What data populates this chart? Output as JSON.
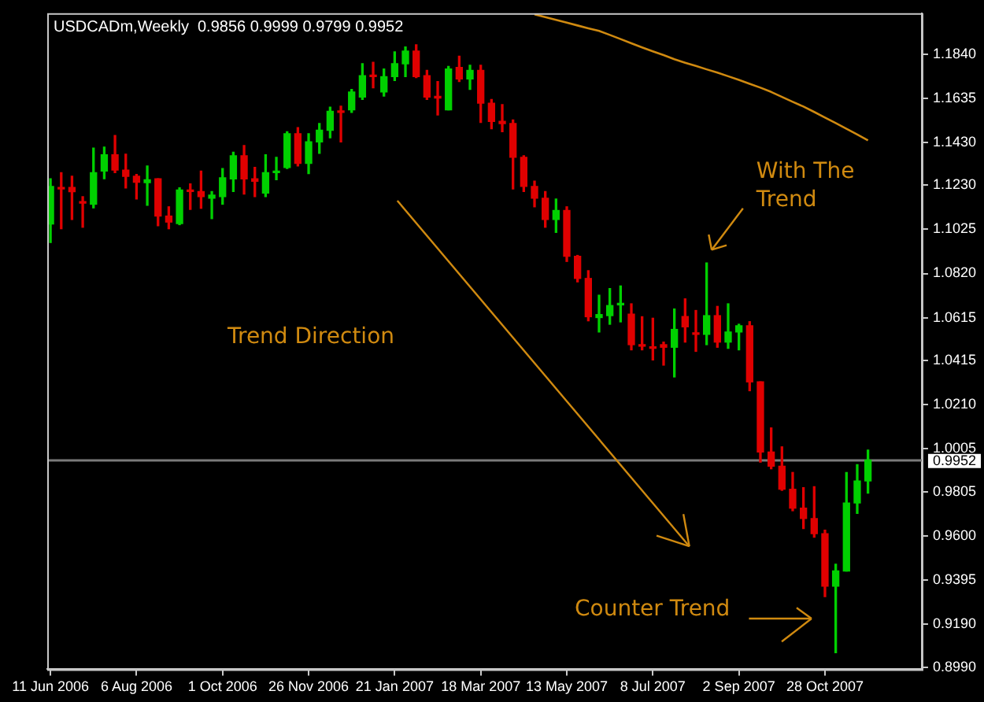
{
  "chart_data": {
    "type": "candlestick",
    "title": "USDCADm,Weekly  0.9856 0.9999 0.9799 0.9952",
    "categories": [
      "11 Jun 2006",
      null,
      null,
      null,
      null,
      null,
      null,
      null,
      "6 Aug 2006",
      null,
      null,
      null,
      null,
      null,
      null,
      null,
      "1 Oct 2006",
      null,
      null,
      null,
      null,
      null,
      null,
      null,
      "26 Nov 2006",
      null,
      null,
      null,
      null,
      null,
      null,
      null,
      "21 Jan 2007",
      null,
      null,
      null,
      null,
      null,
      null,
      null,
      "18 Mar 2007",
      null,
      null,
      null,
      null,
      null,
      null,
      null,
      "13 May 2007",
      null,
      null,
      null,
      null,
      null,
      null,
      null,
      "8 Jul 2007",
      null,
      null,
      null,
      null,
      null,
      null,
      null,
      "2 Sep 2007",
      null,
      null,
      null,
      null,
      null,
      null,
      null,
      "28 Oct 2007",
      null,
      null,
      null,
      null
    ],
    "ohlc": [
      [
        1.105,
        1.126,
        1.0964,
        1.1225
      ],
      [
        1.1218,
        1.1289,
        1.1028,
        1.1213
      ],
      [
        1.122,
        1.1272,
        1.1071,
        1.12
      ],
      [
        1.1154,
        1.1177,
        1.1035,
        1.1147
      ],
      [
        1.1142,
        1.1403,
        1.1125,
        1.1289
      ],
      [
        1.1296,
        1.1408,
        1.1261,
        1.1372
      ],
      [
        1.1372,
        1.1462,
        1.1289,
        1.1301
      ],
      [
        1.1301,
        1.1375,
        1.1218,
        1.1272
      ],
      [
        1.1272,
        1.128,
        1.1166,
        1.1244
      ],
      [
        1.1242,
        1.132,
        1.1137,
        1.1256
      ],
      [
        1.126,
        1.126,
        1.1042,
        1.1087
      ],
      [
        1.1087,
        1.113,
        1.1028,
        1.1059
      ],
      [
        1.1052,
        1.1218,
        1.1047,
        1.1208
      ],
      [
        1.1208,
        1.1237,
        1.1118,
        1.1201
      ],
      [
        1.1201,
        1.1296,
        1.1123,
        1.1177
      ],
      [
        1.117,
        1.1201,
        1.1075,
        1.1184
      ],
      [
        1.1177,
        1.1308,
        1.1142,
        1.1265
      ],
      [
        1.126,
        1.1384,
        1.1201,
        1.1367
      ],
      [
        1.1367,
        1.1415,
        1.1189,
        1.126
      ],
      [
        1.126,
        1.1313,
        1.1177,
        1.1249
      ],
      [
        1.1194,
        1.1372,
        1.1177,
        1.1289
      ],
      [
        1.1289,
        1.136,
        1.1256,
        1.1296
      ],
      [
        1.1313,
        1.1479,
        1.1308,
        1.147
      ],
      [
        1.147,
        1.1498,
        1.132,
        1.1332
      ],
      [
        1.1332,
        1.147,
        1.1284,
        1.1432
      ],
      [
        1.1432,
        1.1517,
        1.1379,
        1.1486
      ],
      [
        1.1486,
        1.1593,
        1.1451,
        1.1574
      ],
      [
        1.1574,
        1.1598,
        1.1432,
        1.1569
      ],
      [
        1.1581,
        1.1676,
        1.1569,
        1.1664
      ],
      [
        1.164,
        1.1795,
        1.1629,
        1.174
      ],
      [
        1.174,
        1.1802,
        1.1683,
        1.1735
      ],
      [
        1.1664,
        1.1771,
        1.1645,
        1.1735
      ],
      [
        1.1735,
        1.185,
        1.1717,
        1.1795
      ],
      [
        1.1795,
        1.1873,
        1.1735,
        1.1854
      ],
      [
        1.1854,
        1.1883,
        1.1731,
        1.1735
      ],
      [
        1.174,
        1.1764,
        1.1629,
        1.164
      ],
      [
        1.164,
        1.1712,
        1.1557,
        1.1636
      ],
      [
        1.1581,
        1.1783,
        1.1581,
        1.1771
      ],
      [
        1.1778,
        1.183,
        1.1712,
        1.1724
      ],
      [
        1.1724,
        1.1788,
        1.1676,
        1.1764
      ],
      [
        1.1764,
        1.1788,
        1.1522,
        1.1612
      ],
      [
        1.1612,
        1.1629,
        1.1493,
        1.1527
      ],
      [
        1.1527,
        1.1605,
        1.1479,
        1.1517
      ],
      [
        1.1517,
        1.1534,
        1.1213,
        1.136
      ],
      [
        1.136,
        1.1367,
        1.1201,
        1.1225
      ],
      [
        1.1225,
        1.1249,
        1.113,
        1.117
      ],
      [
        1.117,
        1.1201,
        1.1035,
        1.1071
      ],
      [
        1.1071,
        1.1166,
        1.1011,
        1.1113
      ],
      [
        1.1113,
        1.113,
        1.0876,
        1.09
      ],
      [
        1.09,
        1.0904,
        1.0781,
        1.0797
      ],
      [
        1.0797,
        1.0833,
        1.06,
        1.0619
      ],
      [
        1.0615,
        1.0719,
        1.0548,
        1.0629
      ],
      [
        1.0624,
        1.075,
        1.0584,
        1.0671
      ],
      [
        1.0674,
        1.0762,
        1.0595,
        1.0681
      ],
      [
        1.0631,
        1.0679,
        1.0465,
        1.0489
      ],
      [
        1.0489,
        1.0619,
        1.0465,
        1.0482
      ],
      [
        1.0477,
        1.0612,
        1.0418,
        1.0472
      ],
      [
        1.0489,
        1.0501,
        1.0394,
        1.0477
      ],
      [
        1.0477,
        1.0655,
        1.0339,
        1.056
      ],
      [
        1.062,
        1.0702,
        1.0501,
        1.0572
      ],
      [
        1.0541,
        1.0648,
        1.0458,
        1.0537
      ],
      [
        1.0537,
        1.0869,
        1.0489,
        1.0624
      ],
      [
        1.0624,
        1.0667,
        1.0477,
        1.0501
      ],
      [
        1.0501,
        1.0679,
        1.0472,
        1.0548
      ],
      [
        1.0548,
        1.0584,
        1.0465,
        1.0577
      ],
      [
        1.0577,
        1.0596,
        1.0275,
        1.0316
      ],
      [
        1.0316,
        1.0316,
        0.9943,
        0.999
      ],
      [
        0.999,
        1.0102,
        0.9912,
        0.9924
      ],
      [
        0.9924,
        1.0014,
        0.9812,
        0.9817
      ],
      [
        0.9817,
        0.9895,
        0.9717,
        0.9729
      ],
      [
        0.9729,
        0.9824,
        0.9634,
        0.9681
      ],
      [
        0.9681,
        0.9829,
        0.9594,
        0.961
      ],
      [
        0.961,
        0.9627,
        0.9318,
        0.9366
      ],
      [
        0.9366,
        0.9468,
        0.9057,
        0.9437
      ],
      [
        0.9437,
        0.9895,
        0.9437,
        0.9753
      ],
      [
        0.9753,
        0.9931,
        0.9705,
        0.9855
      ],
      [
        0.9856,
        0.9999,
        0.9799,
        0.9952
      ]
    ],
    "colors": [
      "#00d000",
      "#e00000",
      "#e00000",
      "#e00000",
      "#00d000",
      "#00d000",
      "#e00000",
      "#e00000",
      "#e00000",
      "#00d000",
      "#e00000",
      "#e00000",
      "#00d000",
      "#e00000",
      "#e00000",
      "#00d000",
      "#00d000",
      "#00d000",
      "#e00000",
      "#e00000",
      "#00d000",
      "#00d000",
      "#00d000",
      "#e00000",
      "#00d000",
      "#00d000",
      "#00d000",
      "#e00000",
      "#00d000",
      "#00d000",
      "#e00000",
      "#00d000",
      "#00d000",
      "#00d000",
      "#e00000",
      "#e00000",
      "#e00000",
      "#00d000",
      "#e00000",
      "#00d000",
      "#e00000",
      "#e00000",
      "#e00000",
      "#e00000",
      "#e00000",
      "#e00000",
      "#e00000",
      "#00d000",
      "#e00000",
      "#e00000",
      "#e00000",
      "#00d000",
      "#00d000",
      "#00d000",
      "#e00000",
      "#e00000",
      "#e00000",
      "#e00000",
      "#00d000",
      "#e00000",
      "#e00000",
      "#00d000",
      "#e00000",
      "#00d000",
      "#00d000",
      "#e00000",
      "#e00000",
      "#e00000",
      "#e00000",
      "#e00000",
      "#e00000",
      "#e00000",
      "#e00000",
      "#00d000",
      "#00d000",
      "#00d000",
      "#00d000"
    ],
    "series": [
      {
        "type": "line",
        "color": "#d08a10",
        "values": [
          null,
          null,
          null,
          null,
          null,
          null,
          null,
          null,
          null,
          null,
          null,
          null,
          null,
          null,
          null,
          null,
          null,
          null,
          null,
          null,
          null,
          null,
          null,
          null,
          null,
          null,
          null,
          null,
          null,
          null,
          null,
          null,
          null,
          null,
          null,
          null,
          null,
          null,
          null,
          null,
          null,
          null,
          null,
          null,
          null,
          1.2025,
          1.2012,
          1.1999,
          1.1986,
          1.1973,
          1.196,
          1.1948,
          1.1929,
          1.191,
          1.189,
          1.1871,
          1.1853,
          1.1835,
          1.1816,
          1.18,
          1.1785,
          1.1769,
          1.1754,
          1.1737,
          1.172,
          1.1702,
          1.1684,
          1.1664,
          1.1641,
          1.1618,
          1.1596,
          1.1571,
          1.1545,
          1.1519,
          1.1493,
          1.1466,
          1.1439
        ]
      }
    ],
    "ylim": [
      0.898,
      1.203
    ],
    "yticks": [
      {
        "value": 0.899,
        "label": "0.8990"
      },
      {
        "value": 0.919,
        "label": "0.9190"
      },
      {
        "value": 0.9395,
        "label": "0.9395"
      },
      {
        "value": 0.96,
        "label": "0.9600"
      },
      {
        "value": 0.9805,
        "label": "0.9805"
      },
      {
        "value": 1.0005,
        "label": "1.0005"
      },
      {
        "value": 1.021,
        "label": "1.0210"
      },
      {
        "value": 1.0415,
        "label": "1.0415"
      },
      {
        "value": 1.0615,
        "label": "1.0615"
      },
      {
        "value": 1.082,
        "label": "1.0820"
      },
      {
        "value": 1.1025,
        "label": "1.1025"
      },
      {
        "value": 1.123,
        "label": "1.1230"
      },
      {
        "value": 1.143,
        "label": "1.1430"
      },
      {
        "value": 1.1635,
        "label": "1.1635"
      },
      {
        "value": 1.184,
        "label": "1.1840"
      }
    ],
    "ref_lines": [
      {
        "axis": "y",
        "value": 0.9952,
        "label": "0.9952",
        "color": "#7a7a7a"
      }
    ],
    "annotations": [
      "Trend Direction",
      "With The Trend",
      "Counter Trend"
    ]
  }
}
